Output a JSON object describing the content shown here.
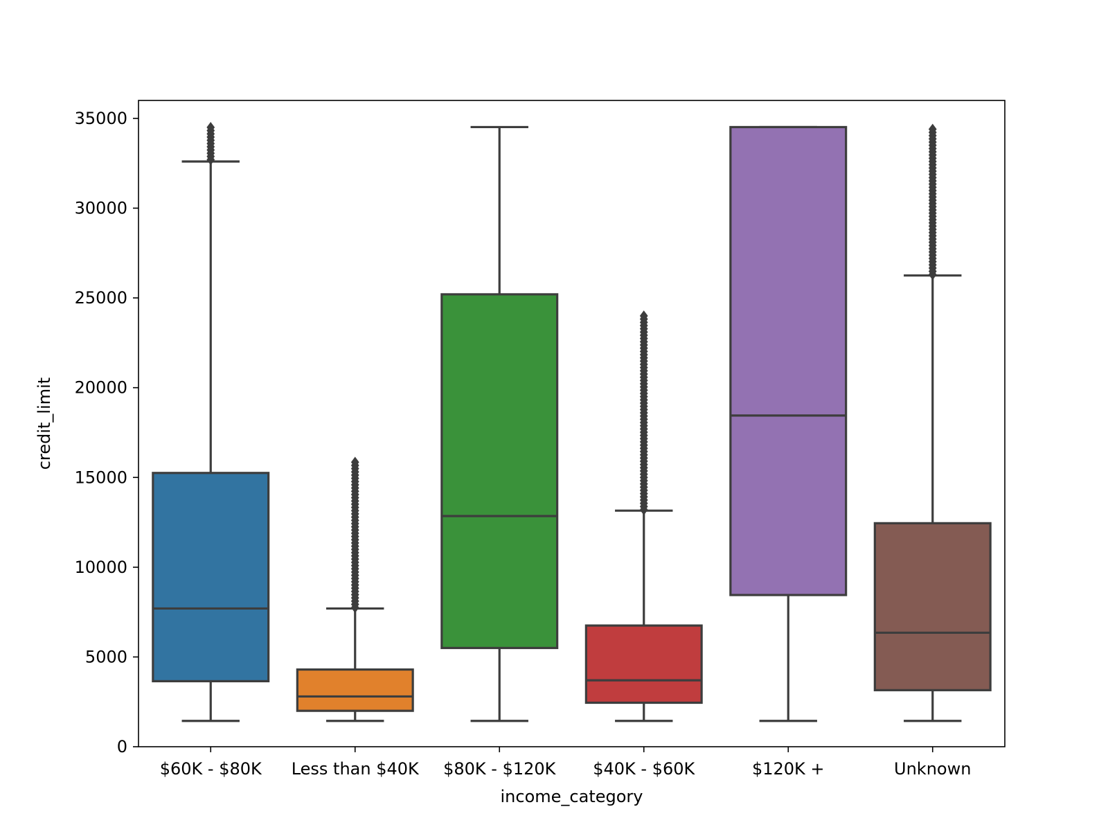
{
  "chart_data": {
    "type": "box",
    "title": "",
    "xlabel": "income_category",
    "ylabel": "credit_limit",
    "ylim": [
      0,
      36000
    ],
    "yticks": [
      0,
      5000,
      10000,
      15000,
      20000,
      25000,
      30000,
      35000
    ],
    "categories": [
      "60K–80K",
      "Less than $40K",
      "80K–120K",
      "40K–60K",
      "$120K +",
      "Unknown"
    ],
    "category_labels": [
      "$60K - $80K",
      "Less than $40K",
      "$80K - $120K",
      "$40K - $60K",
      "$120K +",
      "Unknown"
    ],
    "colors": [
      "#3274a1",
      "#e1812c",
      "#3a923a",
      "#c03d3e",
      "#9372b2",
      "#845b53"
    ],
    "boxes": [
      {
        "category": "60K–80K",
        "whisker_low": 1438,
        "q1": 3650,
        "median": 7700,
        "q3": 15250,
        "whisker_high": 32600,
        "outlier_min": 32700,
        "outlier_max": 34516
      },
      {
        "category": "Less than $40K",
        "whisker_low": 1438,
        "q1": 2000,
        "median": 2800,
        "q3": 4300,
        "whisker_high": 7700,
        "outlier_min": 7750,
        "outlier_max": 16000
      },
      {
        "category": "80K–120K",
        "whisker_low": 1438,
        "q1": 5500,
        "median": 12850,
        "q3": 25200,
        "whisker_high": 34516,
        "outlier_min": null,
        "outlier_max": null
      },
      {
        "category": "40K–60K",
        "whisker_low": 1438,
        "q1": 2450,
        "median": 3700,
        "q3": 6750,
        "whisker_high": 13150,
        "outlier_min": 13200,
        "outlier_max": 24000
      },
      {
        "category": "$120K +",
        "whisker_low": 1438,
        "q1": 8450,
        "median": 18450,
        "q3": 34516,
        "whisker_high": 34516,
        "outlier_min": null,
        "outlier_max": null
      },
      {
        "category": "Unknown",
        "whisker_low": 1438,
        "q1": 3150,
        "median": 6350,
        "q3": 12450,
        "whisker_high": 26250,
        "outlier_min": 26300,
        "outlier_max": 34516
      }
    ],
    "grid": false,
    "legend": "none"
  }
}
